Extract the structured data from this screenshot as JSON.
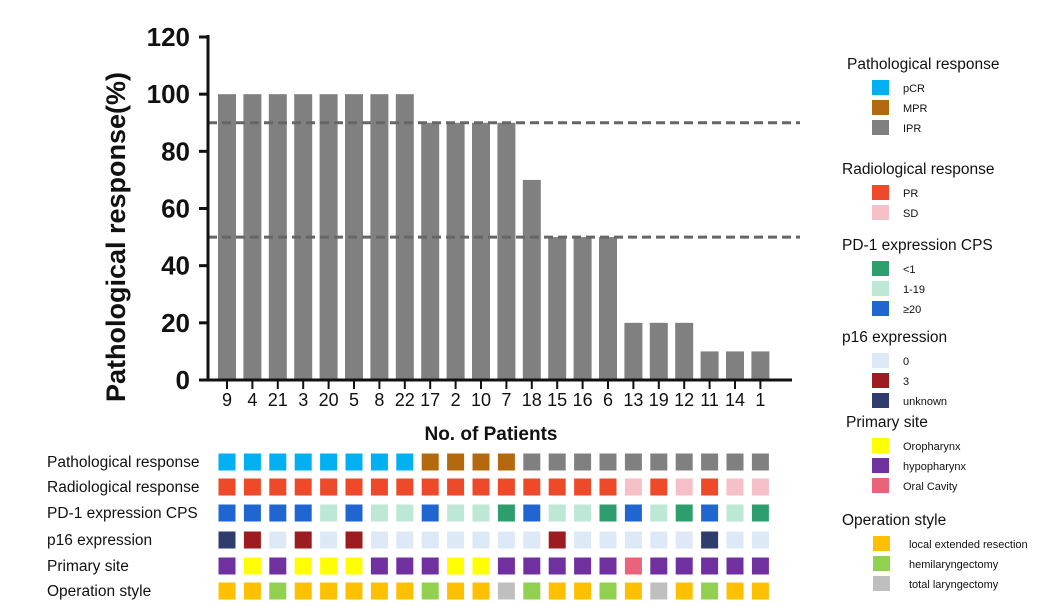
{
  "chart_data": {
    "type": "bar",
    "ylabel": "Pathological response(%)",
    "xlabel": "No. of Patients",
    "ylim": [
      0,
      120
    ],
    "yticks": [
      0,
      20,
      40,
      60,
      80,
      100,
      120
    ],
    "reference_lines": [
      90,
      50
    ],
    "bar_color": "#808080",
    "categories": [
      "9",
      "4",
      "21",
      "3",
      "20",
      "5",
      "8",
      "22",
      "17",
      "2",
      "10",
      "7",
      "18",
      "15",
      "16",
      "6",
      "13",
      "19",
      "12",
      "11",
      "14",
      "1"
    ],
    "values": [
      100,
      100,
      100,
      100,
      100,
      100,
      100,
      100,
      90,
      90,
      90,
      90,
      70,
      50,
      50,
      50,
      20,
      20,
      20,
      10,
      10,
      10
    ],
    "annotation_rows": [
      {
        "label": "Pathological response",
        "values": [
          "pCR",
          "pCR",
          "pCR",
          "pCR",
          "pCR",
          "pCR",
          "pCR",
          "pCR",
          "MPR",
          "MPR",
          "MPR",
          "MPR",
          "IPR",
          "IPR",
          "IPR",
          "IPR",
          "IPR",
          "IPR",
          "IPR",
          "IPR",
          "IPR",
          "IPR"
        ]
      },
      {
        "label": "Radiological response",
        "values": [
          "PR",
          "PR",
          "PR",
          "PR",
          "PR",
          "PR",
          "PR",
          "PR",
          "PR",
          "PR",
          "PR",
          "PR",
          "PR",
          "PR",
          "PR",
          "PR",
          "SD",
          "PR",
          "SD",
          "PR",
          "SD",
          "SD"
        ]
      },
      {
        "label": "PD-1 expression CPS",
        "values": [
          "≥20",
          "≥20",
          "≥20",
          "≥20",
          "1-19",
          "≥20",
          "1-19",
          "1-19",
          "≥20",
          "1-19",
          "1-19",
          "<1",
          "≥20",
          "1-19",
          "1-19",
          "<1",
          "≥20",
          "1-19",
          "<1",
          "≥20",
          "1-19",
          "<1"
        ]
      },
      {
        "label": "p16 expression",
        "values": [
          "unknown",
          "3",
          "0",
          "3",
          "0",
          "3",
          "0",
          "0",
          "0",
          "0",
          "0",
          "0",
          "0",
          "3",
          "0",
          "0",
          "0",
          "0",
          "0",
          "unknown",
          "0",
          "0"
        ]
      },
      {
        "label": "Primary site",
        "values": [
          "hypopharynx",
          "Oropharynx",
          "hypopharynx",
          "Oropharynx",
          "Oropharynx",
          "Oropharynx",
          "hypopharynx",
          "hypopharynx",
          "hypopharynx",
          "Oropharynx",
          "Oropharynx",
          "hypopharynx",
          "hypopharynx",
          "hypopharynx",
          "hypopharynx",
          "hypopharynx",
          "Oral Cavity",
          "hypopharynx",
          "hypopharynx",
          "hypopharynx",
          "hypopharynx",
          "hypopharynx"
        ]
      },
      {
        "label": "Operation style",
        "values": [
          "local extended resection",
          "local extended resection",
          "hemilaryngectomy",
          "local extended resection",
          "local extended resection",
          "local extended resection",
          "local extended resection",
          "local extended resection",
          "hemilaryngectomy",
          "local extended resection",
          "local extended resection",
          "total laryngectomy",
          "hemilaryngectomy",
          "local extended resection",
          "local extended resection",
          "hemilaryngectomy",
          "local extended resection",
          "total laryngectomy",
          "local extended resection",
          "hemilaryngectomy",
          "local extended resection",
          "local extended resection"
        ]
      }
    ],
    "legends": [
      {
        "title": "Pathological response",
        "items": [
          {
            "label": "pCR",
            "color": "#00b0f0"
          },
          {
            "label": "MPR",
            "color": "#b5690e"
          },
          {
            "label": "IPR",
            "color": "#808080"
          }
        ]
      },
      {
        "title": "Radiological response",
        "items": [
          {
            "label": "PR",
            "color": "#ee4a2a"
          },
          {
            "label": "SD",
            "color": "#f6c0c8"
          }
        ]
      },
      {
        "title": "PD-1 expression CPS",
        "items": [
          {
            "label": "<1",
            "color": "#2e9e6e"
          },
          {
            "label": "1-19",
            "color": "#bde8d6"
          },
          {
            "label": "≥20",
            "color": "#1f66d1"
          }
        ]
      },
      {
        "title": "p16 expression",
        "items": [
          {
            "label": "0",
            "color": "#dde9f7"
          },
          {
            "label": "3",
            "color": "#9c1c20"
          },
          {
            "label": "unknown",
            "color": "#2e3c6e"
          }
        ]
      },
      {
        "title": "Primary site",
        "items": [
          {
            "label": "Oropharynx",
            "color": "#ffff00"
          },
          {
            "label": "hypopharynx",
            "color": "#7030a0"
          },
          {
            "label": "Oral Cavity",
            "color": "#e9637a"
          }
        ]
      },
      {
        "title": "Operation style",
        "items": [
          {
            "label": "local extended resection",
            "color": "#ffc000"
          },
          {
            "label": "hemilaryngectomy",
            "color": "#92d050"
          },
          {
            "label": "total laryngectomy",
            "color": "#bfbfbf"
          }
        ]
      }
    ]
  }
}
